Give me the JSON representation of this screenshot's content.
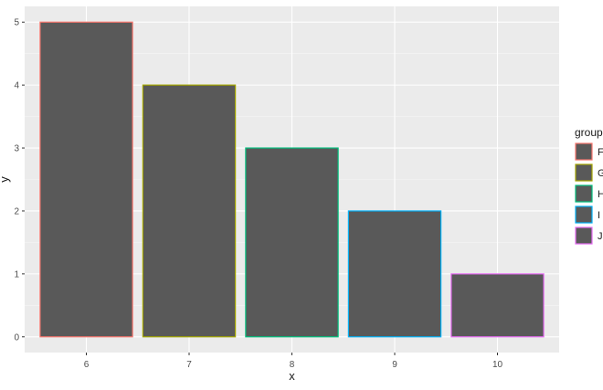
{
  "chart_data": {
    "type": "bar",
    "xlabel": "x",
    "ylabel": "y",
    "categories": [
      "6",
      "7",
      "8",
      "9",
      "10"
    ],
    "values": [
      5,
      4,
      3,
      2,
      1
    ],
    "ylim": [
      0,
      5
    ],
    "y_ticks": [
      "0",
      "1",
      "2",
      "3",
      "4",
      "5"
    ],
    "grid": true,
    "bar_fill": "#595959",
    "panel_background": "#ebebeb",
    "legend": {
      "title": "group",
      "placement": "right",
      "entries": [
        {
          "label": "F",
          "color": "#F8766D"
        },
        {
          "label": "G",
          "color": "#A3A500"
        },
        {
          "label": "H",
          "color": "#00BF7D"
        },
        {
          "label": "I",
          "color": "#00B0F6"
        },
        {
          "label": "J",
          "color": "#E76BF3"
        }
      ]
    }
  }
}
